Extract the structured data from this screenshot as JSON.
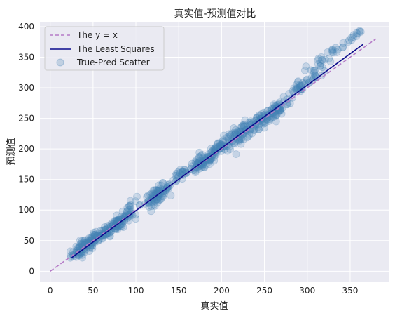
{
  "chart_data": {
    "type": "scatter",
    "title": "真实值-预测值对比",
    "xlabel": "真实值",
    "ylabel": "预测值",
    "xlim": [
      -12,
      395
    ],
    "ylim": [
      -18,
      408
    ],
    "x_ticks": [
      0,
      50,
      100,
      150,
      200,
      250,
      300,
      350
    ],
    "y_ticks": [
      0,
      50,
      100,
      150,
      200,
      250,
      300,
      350,
      400
    ],
    "grid": true,
    "legend": {
      "placement": "top-left",
      "entries": [
        "The y = x",
        "The Least Squares",
        "True-Pred Scatter"
      ]
    },
    "series": [
      {
        "name": "The y = x",
        "kind": "line",
        "style": "dashed",
        "color": "#b57bc7",
        "x": [
          0,
          380
        ],
        "y": [
          0,
          380
        ]
      },
      {
        "name": "The Least Squares",
        "kind": "line",
        "style": "solid",
        "color": "#0b0b8c",
        "x": [
          25,
          365
        ],
        "y": [
          22,
          371
        ]
      },
      {
        "name": "True-Pred Scatter",
        "kind": "scatter",
        "color": "#4682b4",
        "opacity": 0.22,
        "clusters": [
          {
            "cx": 40,
            "cy": 40,
            "sx": 8,
            "sy": 10,
            "n": 90
          },
          {
            "cx": 58,
            "cy": 58,
            "sx": 6,
            "sy": 9,
            "n": 40
          },
          {
            "cx": 78,
            "cy": 78,
            "sx": 8,
            "sy": 10,
            "n": 90
          },
          {
            "cx": 93,
            "cy": 100,
            "sx": 4,
            "sy": 14,
            "n": 20
          },
          {
            "cx": 125,
            "cy": 125,
            "sx": 7,
            "sy": 10,
            "n": 80
          },
          {
            "cx": 150,
            "cy": 155,
            "sx": 7,
            "sy": 8,
            "n": 25
          },
          {
            "cx": 178,
            "cy": 178,
            "sx": 9,
            "sy": 10,
            "n": 80
          },
          {
            "cx": 200,
            "cy": 205,
            "sx": 8,
            "sy": 10,
            "n": 50
          },
          {
            "cx": 222,
            "cy": 225,
            "sx": 9,
            "sy": 12,
            "n": 70
          },
          {
            "cx": 245,
            "cy": 245,
            "sx": 8,
            "sy": 11,
            "n": 55
          },
          {
            "cx": 265,
            "cy": 265,
            "sx": 7,
            "sy": 11,
            "n": 60
          },
          {
            "cx": 290,
            "cy": 300,
            "sx": 6,
            "sy": 10,
            "n": 25
          },
          {
            "cx": 308,
            "cy": 325,
            "sx": 8,
            "sy": 15,
            "n": 30
          },
          {
            "cx": 330,
            "cy": 360,
            "sx": 12,
            "sy": 5,
            "n": 20
          },
          {
            "cx": 355,
            "cy": 385,
            "sx": 6,
            "sy": 4,
            "n": 10
          }
        ]
      }
    ]
  }
}
